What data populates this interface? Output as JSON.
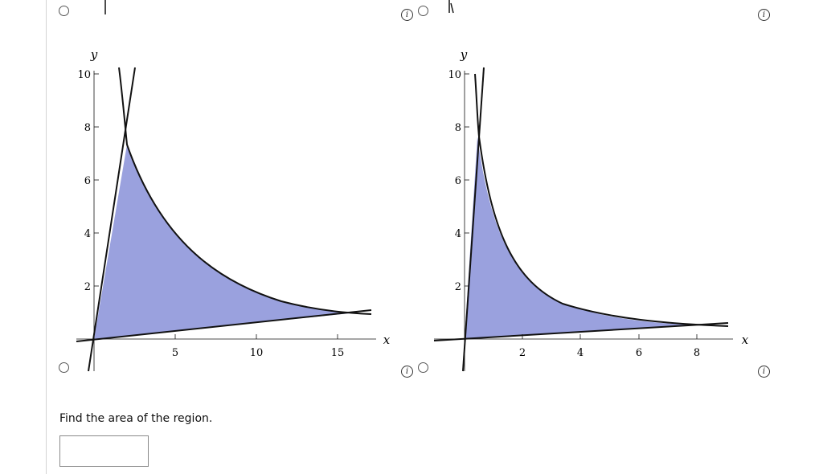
{
  "question": {
    "prompt": "Find the area of the region.",
    "answer_value": ""
  },
  "graphs": [
    {
      "x_label": "x",
      "y_label": "y",
      "x_ticks": [
        "5",
        "10",
        "15"
      ],
      "y_ticks": [
        "2",
        "4",
        "6",
        "8",
        "10"
      ],
      "fill_color": "#9aa1de"
    },
    {
      "x_label": "x",
      "y_label": "y",
      "x_ticks": [
        "2",
        "4",
        "6",
        "8"
      ],
      "y_ticks": [
        "2",
        "4",
        "6",
        "8",
        "10"
      ],
      "fill_color": "#9aa1de"
    }
  ],
  "icons": {
    "radio": "radio-button-icon",
    "info": "info-icon"
  },
  "info_glyph": "i"
}
